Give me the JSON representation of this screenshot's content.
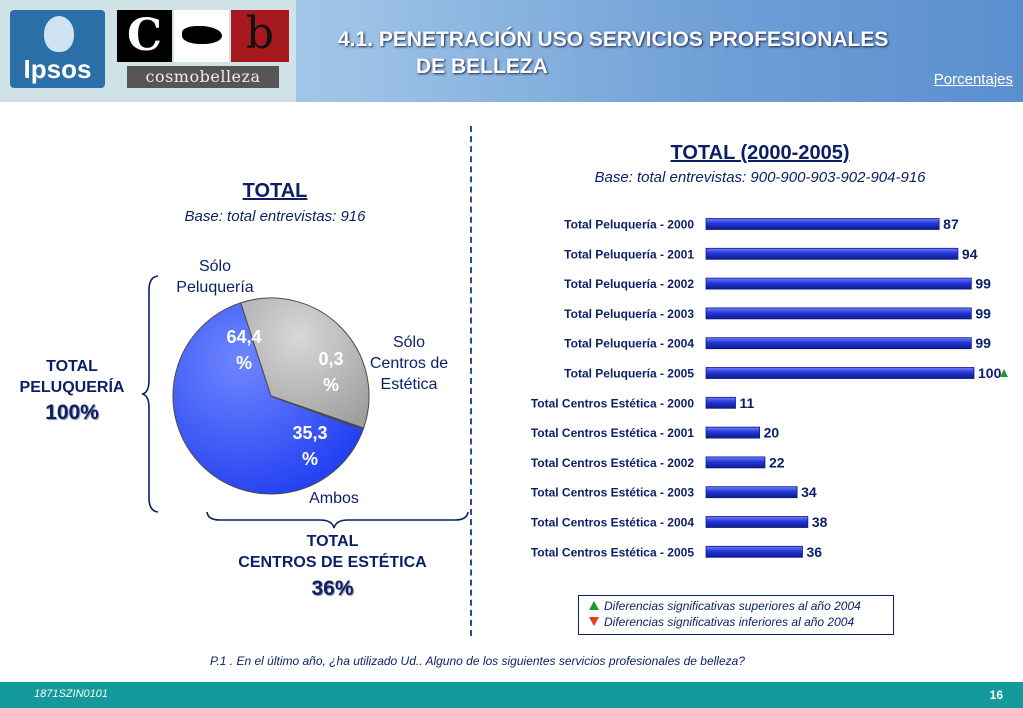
{
  "header": {
    "logo_ipsos": "Ipsos",
    "logo_cb_c": "C",
    "logo_cb_b": "b",
    "logo_cosmo": "cosmobelleza",
    "title_line1": "4.1. PENETRACIÓN USO SERVICIOS PROFESIONALES",
    "title_line2": "DE BELLEZA",
    "units_link": "Porcentajes"
  },
  "left": {
    "title": "TOTAL",
    "subtitle": "Base: total entrevistas: 916",
    "label_solo_peluqueria": "Sólo\nPeluquería",
    "label_solo_centros": "Sólo\nCentros de\nEstética",
    "label_ambos": "Ambos",
    "total_peluqueria_label": "TOTAL\nPELUQUERÍA",
    "total_peluqueria_value": "100%",
    "total_centros_label": "TOTAL\nCENTROS DE ESTÉTICA",
    "total_centros_value": "36%"
  },
  "right": {
    "title": "TOTAL (2000-2005)",
    "subtitle": "Base: total entrevistas: 900-900-903-902-904-916"
  },
  "legend": {
    "up": "Diferencias significativas superiores al año 2004",
    "down": "Diferencias significativas inferiores al año 2004"
  },
  "question": "P.1 .    En el último año, ¿ha utilizado Ud.. Alguno de los siguientes servicios profesionales de belleza?",
  "footer": {
    "code": "1871SZIN0101",
    "page": "16"
  },
  "colors": {
    "pie_blue": "#1e3cf0",
    "pie_gray": "#9e9e9e",
    "bar_blue": "#2436d6",
    "sig_up": "#1a9a2e",
    "sig_down": "#e0401a"
  },
  "chart_data": [
    {
      "type": "pie",
      "slices": [
        {
          "name": "Sólo Peluquería",
          "value": 64.4,
          "label": "64,4\n%",
          "color": "#1e3cf0"
        },
        {
          "name": "Ambos",
          "value": 35.3,
          "label": "35,3\n%",
          "color": "#9e9e9e"
        },
        {
          "name": "Sólo Centros de Estética",
          "value": 0.3,
          "label": "0,3\n%",
          "color": "#1e3cf0"
        }
      ]
    },
    {
      "type": "bar",
      "orientation": "horizontal",
      "categories": [
        "Total Peluquería - 2000",
        "Total Peluquería - 2001",
        "Total Peluquería - 2002",
        "Total Peluquería - 2003",
        "Total Peluquería - 2004",
        "Total Peluquería - 2005",
        "Total Centros Estética - 2000",
        "Total Centros Estética - 2001",
        "Total Centros Estética - 2002",
        "Total Centros Estética - 2003",
        "Total Centros Estética - 2004",
        "Total Centros Estética - 2005"
      ],
      "values": [
        87,
        94,
        99,
        99,
        99,
        100,
        11,
        20,
        22,
        34,
        38,
        36
      ],
      "labels": [
        "87",
        "94",
        "99",
        "99",
        "99",
        "100",
        "11",
        "20",
        "22",
        "34",
        "38",
        "36"
      ],
      "significant_up": [
        false,
        false,
        false,
        false,
        false,
        true,
        false,
        false,
        false,
        false,
        false,
        false
      ],
      "xlim": [
        0,
        100
      ]
    }
  ]
}
